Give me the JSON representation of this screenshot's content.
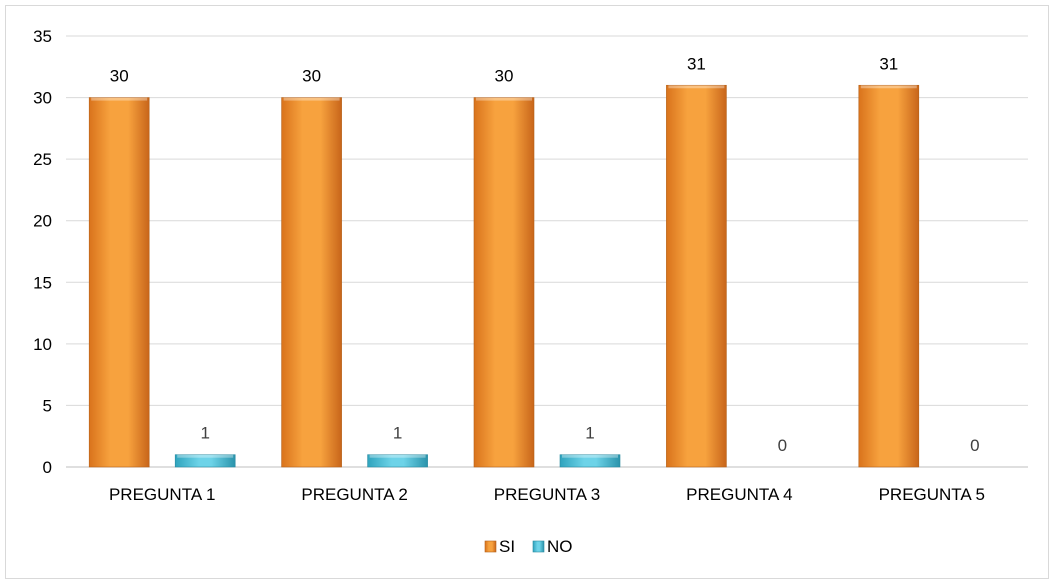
{
  "chart_data": {
    "type": "bar",
    "title": "",
    "xlabel": "",
    "ylabel": "",
    "categories": [
      "PREGUNTA 1",
      "PREGUNTA 2",
      "PREGUNTA 3",
      "PREGUNTA 4",
      "PREGUNTA 5"
    ],
    "series": [
      {
        "name": "SI",
        "values": [
          30,
          30,
          30,
          31,
          31
        ],
        "color": "#f39a34"
      },
      {
        "name": "NO",
        "values": [
          1,
          1,
          1,
          0,
          0
        ],
        "color": "#4fc3db"
      }
    ],
    "ylim": [
      0,
      35
    ],
    "yticks": [
      0,
      5,
      10,
      15,
      20,
      25,
      30,
      35
    ],
    "grid": true,
    "legend": "bottom-center",
    "data_labels": true
  }
}
